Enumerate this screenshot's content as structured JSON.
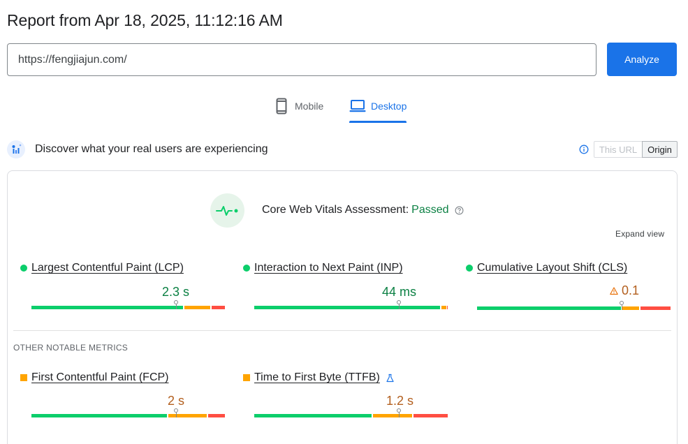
{
  "report": {
    "title": "Report from Apr 18, 2025, 11:12:16 AM"
  },
  "url_bar": {
    "value": "https://fengjiajun.com/",
    "analyze_label": "Analyze"
  },
  "device_tabs": [
    {
      "label": "Mobile",
      "icon": "phone-icon",
      "selected": false
    },
    {
      "label": "Desktop",
      "icon": "laptop-icon",
      "selected": true
    }
  ],
  "crux": {
    "heading": "Discover what your real users are experiencing",
    "toggle_this_url": "This URL",
    "toggle_origin": "Origin",
    "selected": "Origin"
  },
  "assessment": {
    "prefix": "Core Web Vitals Assessment:",
    "status": "Passed",
    "expand_label": "Expand view"
  },
  "core_metrics": [
    {
      "name": "Largest Contentful Paint (LCP)",
      "value": "2.3 s",
      "rating": "good"
    },
    {
      "name": "Interaction to Next Paint (INP)",
      "value": "44 ms",
      "rating": "good"
    },
    {
      "name": "Cumulative Layout Shift (CLS)",
      "value": "0.1",
      "rating": "good"
    }
  ],
  "other_section_label": "OTHER NOTABLE METRICS",
  "other_metrics": [
    {
      "name": "First Contentful Paint (FCP)",
      "value": "2 s",
      "rating": "needs-improvement"
    },
    {
      "name": "Time to First Byte (TTFB)",
      "value": "1.2 s",
      "rating": "needs-improvement",
      "experimental": true
    }
  ],
  "colors": {
    "good": "#0cce6b",
    "average": "#ffa400",
    "poor": "#ff4e42",
    "accent": "#1a73e8"
  }
}
